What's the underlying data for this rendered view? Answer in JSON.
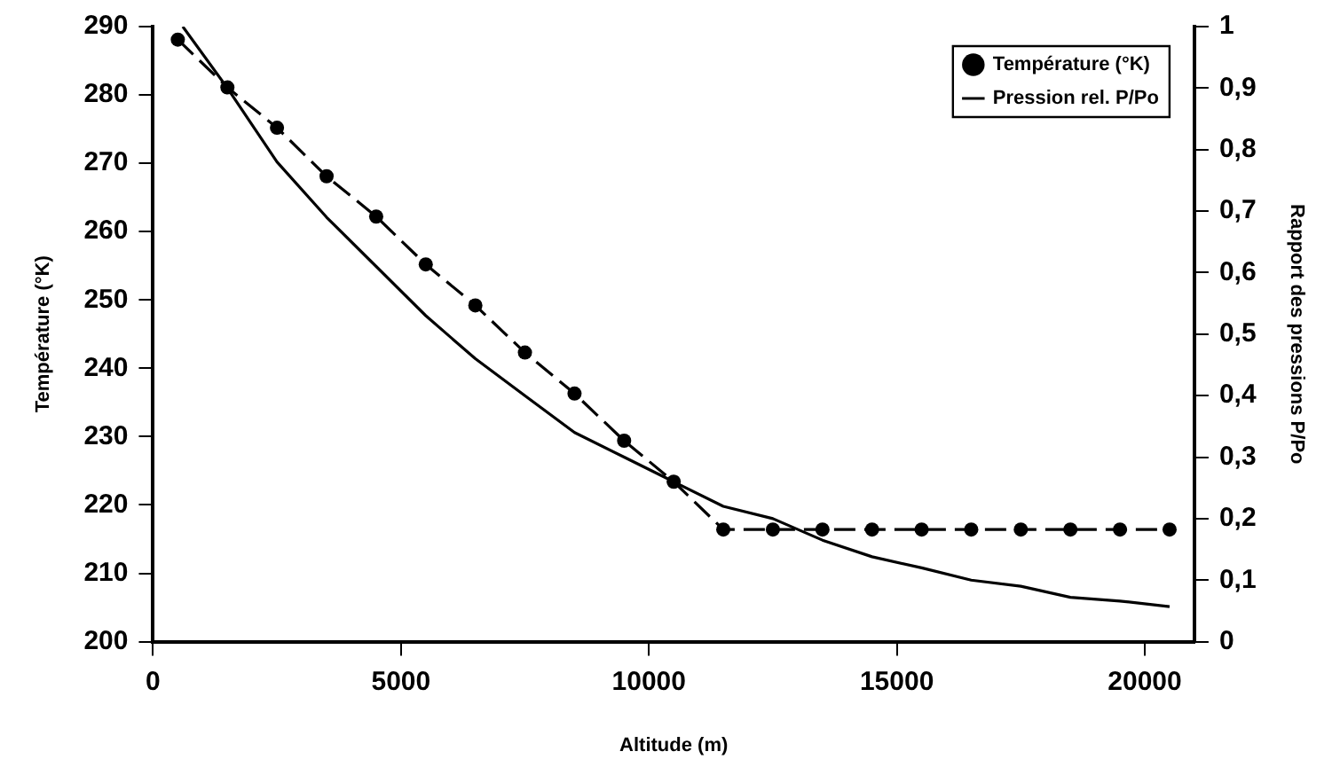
{
  "chart_data": {
    "type": "line",
    "xlabel": "Altitude (m)",
    "ylabel": "Température (°K)",
    "y2label": "Rapport des pressions P/Po",
    "xlim": [
      0,
      21000
    ],
    "xticks": [
      0,
      5000,
      10000,
      15000,
      20000
    ],
    "ylim": [
      200,
      290
    ],
    "yticks": [
      200,
      210,
      220,
      230,
      240,
      250,
      260,
      270,
      280,
      290
    ],
    "y2lim": [
      0,
      1
    ],
    "y2ticks": [
      {
        "value": 0,
        "label": "0"
      },
      {
        "value": 0.1,
        "label": "0,1"
      },
      {
        "value": 0.2,
        "label": "0,2"
      },
      {
        "value": 0.3,
        "label": "0,3"
      },
      {
        "value": 0.4,
        "label": "0,4"
      },
      {
        "value": 0.5,
        "label": "0,5"
      },
      {
        "value": 0.6,
        "label": "0,6"
      },
      {
        "value": 0.7,
        "label": "0,7"
      },
      {
        "value": 0.8,
        "label": "0,8"
      },
      {
        "value": 0.9,
        "label": "0,9"
      },
      {
        "value": 1,
        "label": "1"
      }
    ],
    "legend": "top right",
    "grid": false,
    "series": [
      {
        "name": "Température (°K)",
        "color": "#000000",
        "marker": "circle",
        "line_style": "dashed",
        "x": [
          500,
          1500,
          2500,
          3500,
          4500,
          5500,
          6500,
          7500,
          8500,
          9500,
          10500,
          11500,
          12500,
          13500,
          14500,
          15500,
          16500,
          17500,
          18500,
          19500,
          20500
        ],
        "values": [
          288.1,
          281.1,
          275.2,
          268.1,
          262.2,
          255.2,
          249.2,
          242.3,
          236.3,
          229.4,
          223.4,
          216.4,
          216.4,
          216.4,
          216.4,
          216.4,
          216.4,
          216.4,
          216.4,
          216.4,
          216.4
        ]
      },
      {
        "name": "Pression rel. P/Po",
        "color": "#000000",
        "marker": "none",
        "line_style": "solid",
        "axis": "y2",
        "x": [
          600,
          1500,
          2500,
          3500,
          4500,
          5500,
          6500,
          7500,
          8500,
          9500,
          10500,
          11500,
          12500,
          13500,
          14500,
          15500,
          16500,
          17500,
          18500,
          19500,
          20500
        ],
        "values": [
          1,
          0.9,
          0.78,
          0.69,
          0.61,
          0.53,
          0.46,
          0.4,
          0.34,
          0.3,
          0.26,
          0.22,
          0.2,
          0.165,
          0.138,
          0.12,
          0.1,
          0.09,
          0.072,
          0.066,
          0.057
        ]
      }
    ]
  }
}
